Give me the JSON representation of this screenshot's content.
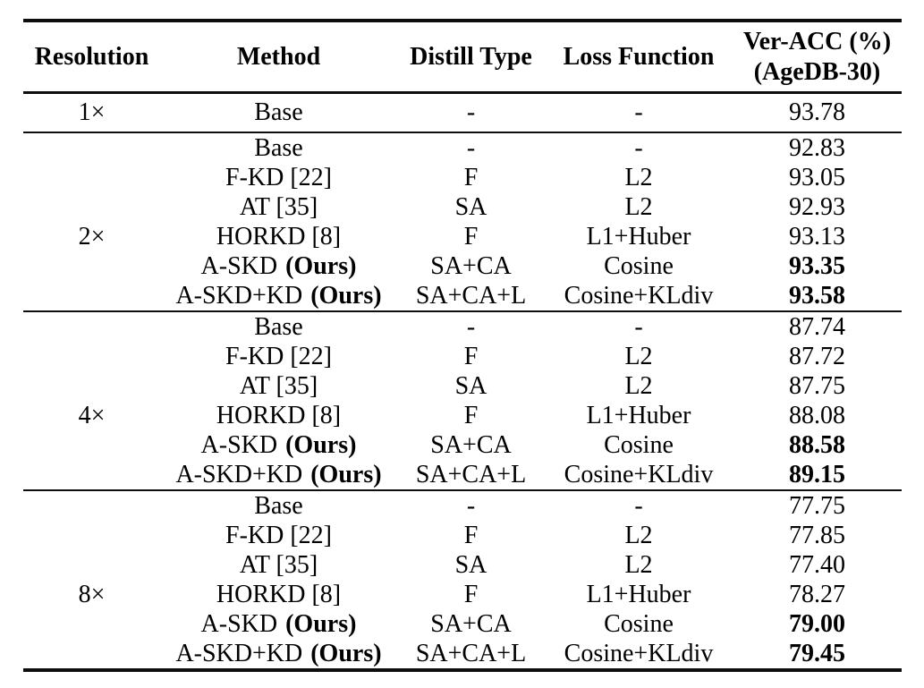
{
  "table": {
    "headers": {
      "resolution": "Resolution",
      "method": "Method",
      "distill": "Distill Type",
      "loss": "Loss Function",
      "acc_line1": "Ver-ACC (%)",
      "acc_line2": "(AgeDB-30)"
    },
    "sections": [
      {
        "resolution": "1×",
        "rows": [
          {
            "method": "Base",
            "distill": "-",
            "loss": "-",
            "acc": "93.78"
          }
        ]
      },
      {
        "resolution": "2×",
        "rows": [
          {
            "method": "Base",
            "distill": "-",
            "loss": "-",
            "acc": "92.83"
          },
          {
            "method": "F-KD [22]",
            "distill": "F",
            "loss": "L2",
            "acc": "93.05"
          },
          {
            "method": "AT [35]",
            "distill": "SA",
            "loss": "L2",
            "acc": "92.93"
          },
          {
            "method": "HORKD [8]",
            "distill": "F",
            "loss": "L1+Huber",
            "acc": "93.13"
          },
          {
            "method": "A-SKD",
            "method_suffix": "(Ours)",
            "distill": "SA+CA",
            "loss": "Cosine",
            "acc": "93.35"
          },
          {
            "method": "A-SKD+KD",
            "method_suffix": "(Ours)",
            "distill": "SA+CA+L",
            "loss": "Cosine+KLdiv",
            "acc": "93.58"
          }
        ]
      },
      {
        "resolution": "4×",
        "rows": [
          {
            "method": "Base",
            "distill": "-",
            "loss": "-",
            "acc": "87.74"
          },
          {
            "method": "F-KD [22]",
            "distill": "F",
            "loss": "L2",
            "acc": "87.72"
          },
          {
            "method": "AT [35]",
            "distill": "SA",
            "loss": "L2",
            "acc": "87.75"
          },
          {
            "method": "HORKD [8]",
            "distill": "F",
            "loss": "L1+Huber",
            "acc": "88.08"
          },
          {
            "method": "A-SKD",
            "method_suffix": "(Ours)",
            "distill": "SA+CA",
            "loss": "Cosine",
            "acc": "88.58"
          },
          {
            "method": "A-SKD+KD",
            "method_suffix": "(Ours)",
            "distill": "SA+CA+L",
            "loss": "Cosine+KLdiv",
            "acc": "89.15"
          }
        ]
      },
      {
        "resolution": "8×",
        "rows": [
          {
            "method": "Base",
            "distill": "-",
            "loss": "-",
            "acc": "77.75"
          },
          {
            "method": "F-KD [22]",
            "distill": "F",
            "loss": "L2",
            "acc": "77.85"
          },
          {
            "method": "AT [35]",
            "distill": "SA",
            "loss": "L2",
            "acc": "77.40"
          },
          {
            "method": "HORKD [8]",
            "distill": "F",
            "loss": "L1+Huber",
            "acc": "78.27"
          },
          {
            "method": "A-SKD",
            "method_suffix": "(Ours)",
            "distill": "SA+CA",
            "loss": "Cosine",
            "acc": "79.00"
          },
          {
            "method": "A-SKD+KD",
            "method_suffix": "(Ours)",
            "distill": "SA+CA+L",
            "loss": "Cosine+KLdiv",
            "acc": "79.45"
          }
        ]
      }
    ]
  }
}
